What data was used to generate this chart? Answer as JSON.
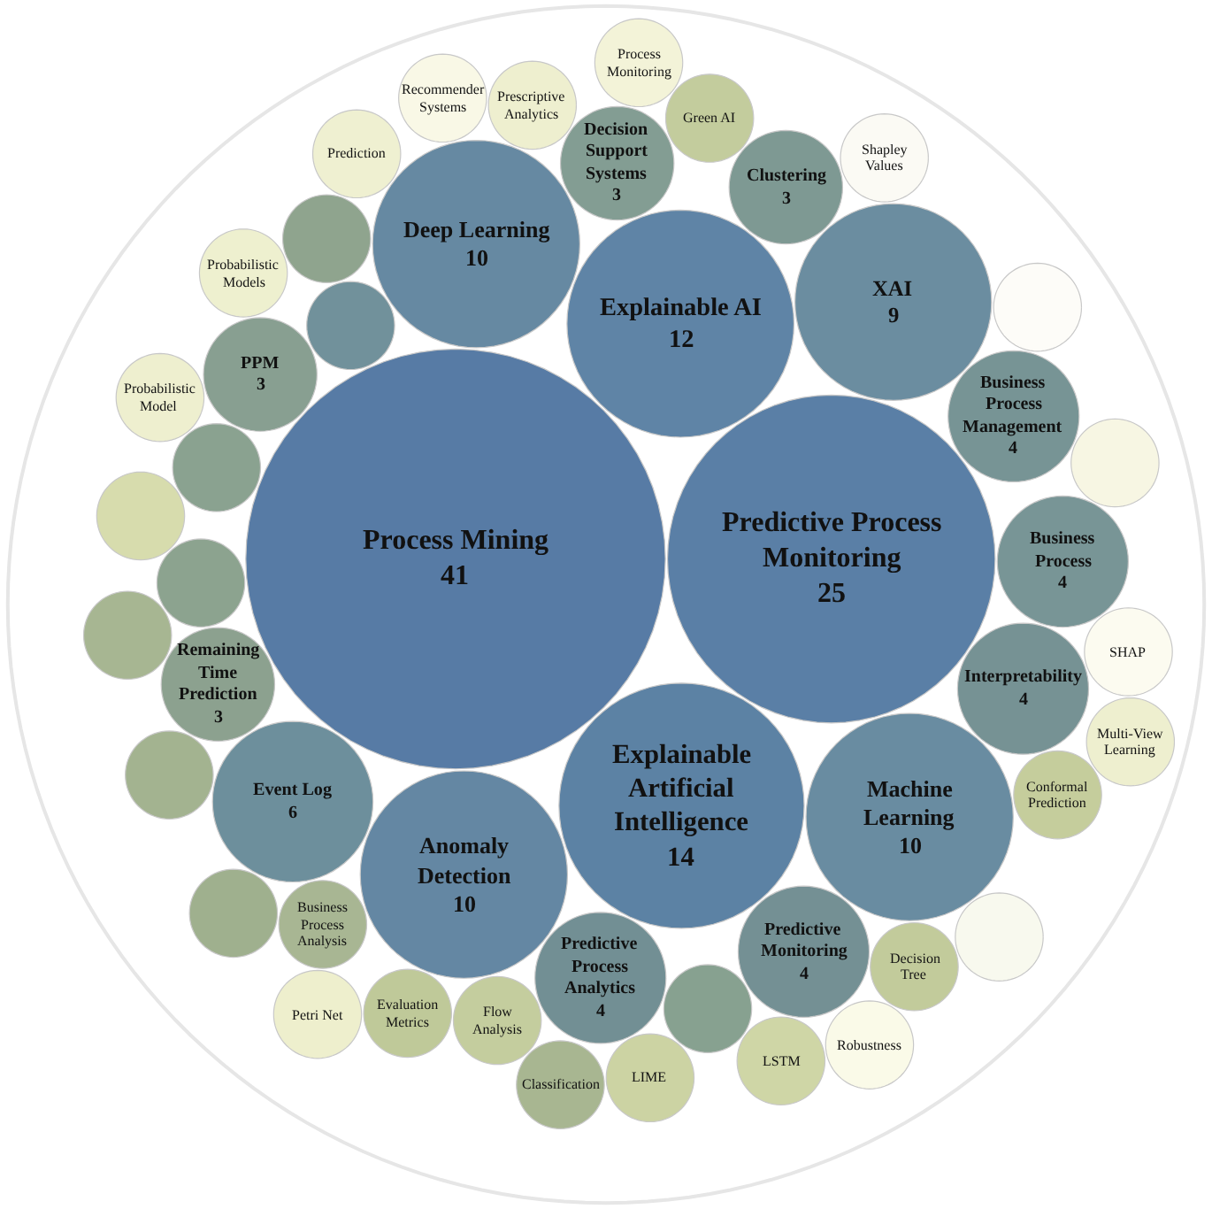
{
  "chart_data": {
    "type": "other",
    "data_labels": true,
    "categories": [
      "Process Mining",
      "Predictive Process Monitoring",
      "Explainable Artificial Intelligence",
      "Explainable AI",
      "Anomaly Detection",
      "Deep Learning",
      "Machine Learning",
      "XAI",
      "Event Log",
      null,
      "Predictive Process Analytics",
      "Predictive Monitoring",
      "Interpretability",
      "Business Process Management",
      "Business Process",
      "Clustering",
      "Decision Support Systems",
      "PPM",
      "Remaining Time Prediction",
      null,
      null,
      null,
      null,
      "Green AI",
      "Flow Analysis",
      "Business Process Analysis",
      "Conformal Prediction",
      "Decision Tree",
      "Evaluation Metrics",
      "LIME",
      "LSTM",
      "Classification",
      null,
      null,
      null,
      null,
      "Probabilistic Models",
      "Probabilistic Model",
      "Prescriptive Analytics",
      "Prediction",
      "Petri Net",
      "Shapley Values",
      null,
      "Recommender Systems",
      null,
      "SHAP",
      null,
      "Robustness",
      "Process Monitoring",
      "Multi-View Learning"
    ],
    "values": [
      41,
      25,
      14,
      12,
      10,
      10,
      10,
      9,
      6,
      null,
      4,
      4,
      4,
      4,
      4,
      3,
      3,
      3,
      3,
      null,
      null,
      null,
      null,
      null,
      null,
      null,
      null,
      null,
      null,
      null,
      null,
      null,
      null,
      null,
      null,
      null,
      null,
      null,
      null,
      null,
      null,
      null,
      null,
      null,
      null,
      null,
      null,
      null,
      null,
      null
    ],
    "colors": [
      "#577ba5",
      "#5a7fa6",
      "#5c82a4",
      "#5f84a6",
      "#6487a3",
      "#6689a2",
      "#698ca1",
      "#6b8da0",
      "#6d8f9c",
      "#71919b",
      "#728f94",
      "#749094",
      "#769294",
      "#779495",
      "#789596",
      "#7e9993",
      "#839d93",
      "#889f91",
      "#8ca18f",
      "#87a190",
      "#8aa290",
      "#8ca38f",
      "#8fa48e",
      "#c3cc9d",
      "#c4cd9e",
      "#a8b693",
      "#c5cd9c",
      "#c2cb9b",
      "#bfc999",
      "#ccd3a3",
      "#cfd6a6",
      "#a8b691",
      "#a3b390",
      "#d7dcad",
      "#a7b692",
      "#9fb08e",
      "#eef0cf",
      "#eeefcf",
      "#eeefcf",
      "#eff0d1",
      "#eeefcd",
      "#fbfaf4",
      "#fdfcf8",
      "#f9f8e6",
      "#f7f6e3",
      "#fcfbf0",
      "#f8f9ee",
      "#fafae8",
      "#f3f3d8",
      "#eeefcf"
    ]
  }
}
